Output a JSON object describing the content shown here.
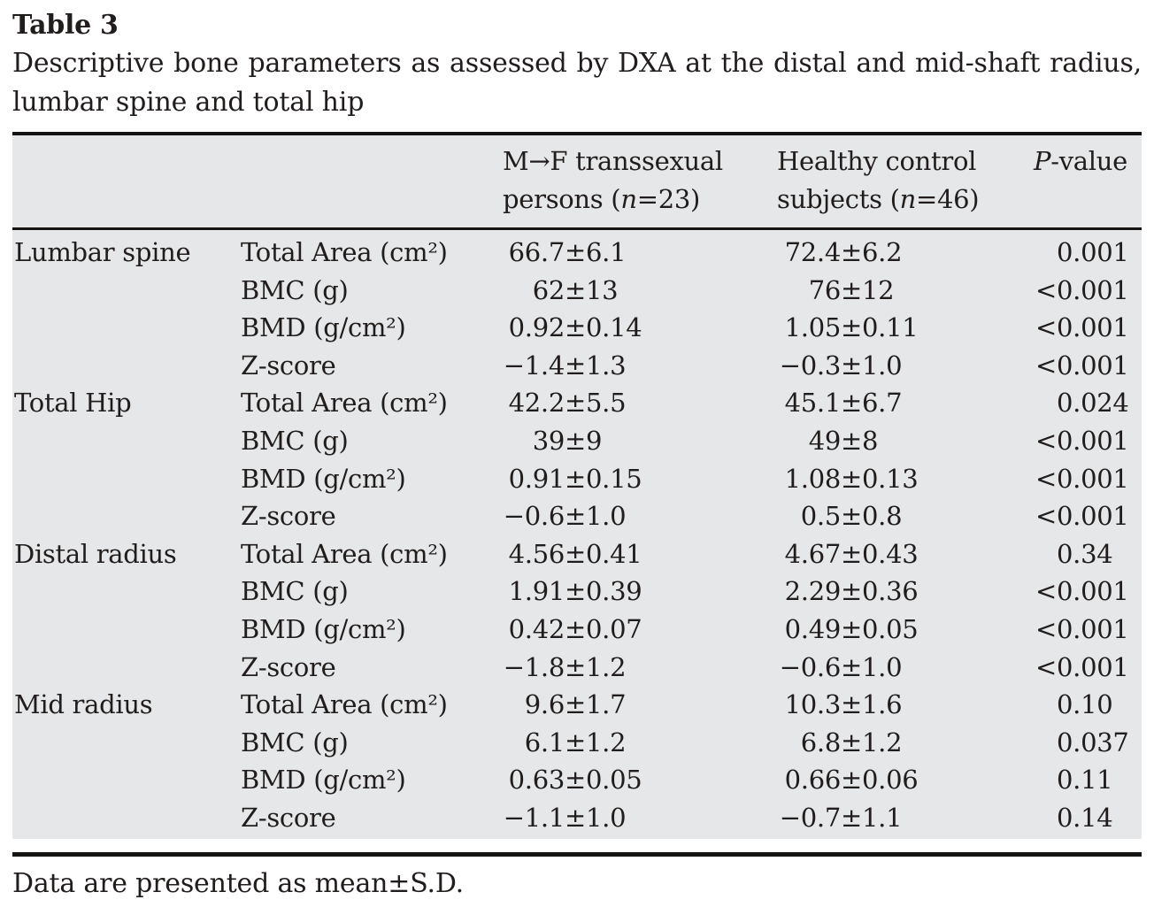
{
  "symbols": {
    "plus_minus": "±"
  },
  "title": "Table 3",
  "caption": {
    "line1": "Descriptive bone parameters as assessed by DXA at the distal and mid-shaft radius,",
    "line2": "lumbar spine and total hip"
  },
  "header": {
    "col_transsexual": {
      "line1": "M→F transsexual",
      "line2_pre": "persons (",
      "line2_italic": "n",
      "line2_post": "=23)"
    },
    "col_control": {
      "line1": "Healthy control",
      "line2_pre": "subjects (",
      "line2_italic": "n",
      "line2_post": "=46)"
    },
    "col_p": {
      "italic": "P",
      "rest": "-value"
    }
  },
  "table": {
    "sections": [
      {
        "region": "Lumbar spine",
        "rows": [
          {
            "param": "Total Area (cm²)",
            "g1": [
              "66.7",
              "6.1"
            ],
            "g2": [
              "72.4",
              "6.2"
            ],
            "p": [
              "",
              "0.001"
            ]
          },
          {
            "param": "BMC (g)",
            "g1": [
              "62",
              "13"
            ],
            "g2": [
              "76",
              "12"
            ],
            "p": [
              "<",
              "0.001"
            ]
          },
          {
            "param": "BMD (g/cm²)",
            "g1": [
              "0.92",
              "0.14"
            ],
            "g2": [
              "1.05",
              "0.11"
            ],
            "p": [
              "<",
              "0.001"
            ]
          },
          {
            "param": "Z-score",
            "g1": [
              "−1.4",
              "1.3"
            ],
            "g2": [
              "−0.3",
              "1.0"
            ],
            "p": [
              "<",
              "0.001"
            ]
          }
        ]
      },
      {
        "region": "Total Hip",
        "rows": [
          {
            "param": "Total Area (cm²)",
            "g1": [
              "42.2",
              "5.5"
            ],
            "g2": [
              "45.1",
              "6.7"
            ],
            "p": [
              "",
              "0.024"
            ]
          },
          {
            "param": "BMC (g)",
            "g1": [
              "39",
              "9"
            ],
            "g2": [
              "49",
              "8"
            ],
            "p": [
              "<",
              "0.001"
            ]
          },
          {
            "param": "BMD (g/cm²)",
            "g1": [
              "0.91",
              "0.15"
            ],
            "g2": [
              "1.08",
              "0.13"
            ],
            "p": [
              "<",
              "0.001"
            ]
          },
          {
            "param": "Z-score",
            "g1": [
              "−0.6",
              "1.0"
            ],
            "g2": [
              "0.5",
              "0.8"
            ],
            "p": [
              "<",
              "0.001"
            ]
          }
        ]
      },
      {
        "region": "Distal radius",
        "rows": [
          {
            "param": "Total Area (cm²)",
            "g1": [
              "4.56",
              "0.41"
            ],
            "g2": [
              "4.67",
              "0.43"
            ],
            "p": [
              "",
              "0.34"
            ]
          },
          {
            "param": "BMC (g)",
            "g1": [
              "1.91",
              "0.39"
            ],
            "g2": [
              "2.29",
              "0.36"
            ],
            "p": [
              "<",
              "0.001"
            ]
          },
          {
            "param": "BMD (g/cm²)",
            "g1": [
              "0.42",
              "0.07"
            ],
            "g2": [
              "0.49",
              "0.05"
            ],
            "p": [
              "<",
              "0.001"
            ]
          },
          {
            "param": "Z-score",
            "g1": [
              "−1.8",
              "1.2"
            ],
            "g2": [
              "−0.6",
              "1.0"
            ],
            "p": [
              "<",
              "0.001"
            ]
          }
        ]
      },
      {
        "region": "Mid radius",
        "rows": [
          {
            "param": "Total Area (cm²)",
            "g1": [
              "9.6",
              "1.7"
            ],
            "g2": [
              "10.3",
              "1.6"
            ],
            "p": [
              "",
              "0.10"
            ]
          },
          {
            "param": "BMC (g)",
            "g1": [
              "6.1",
              "1.2"
            ],
            "g2": [
              "6.8",
              "1.2"
            ],
            "p": [
              "",
              "0.037"
            ]
          },
          {
            "param": "BMD (g/cm²)",
            "g1": [
              "0.63",
              "0.05"
            ],
            "g2": [
              "0.66",
              "0.06"
            ],
            "p": [
              "",
              "0.11"
            ]
          },
          {
            "param": "Z-score",
            "g1": [
              "−1.1",
              "1.0"
            ],
            "g2": [
              "−0.7",
              "1.1"
            ],
            "p": [
              "",
              "0.14"
            ]
          }
        ]
      }
    ]
  },
  "footnote": "Data are presented as mean±S.D.",
  "colors": {
    "table_background": "#e6e7e8",
    "text": "#201d1c",
    "rule": "#161412"
  }
}
